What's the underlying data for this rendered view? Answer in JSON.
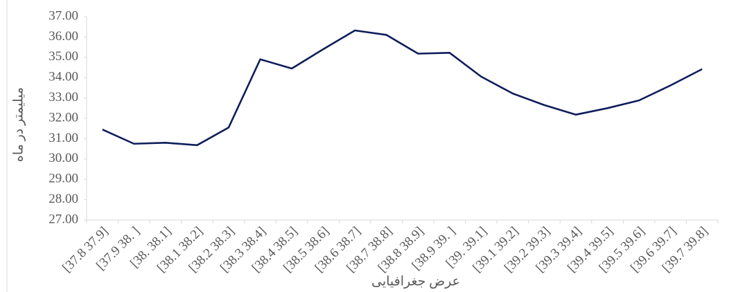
{
  "chart_data": {
    "type": "line",
    "x_label": "عرض جغرافیایی",
    "y_label": "میلیمتر در ماه",
    "categories": [
      "[37.8 37.9]",
      "[37.9 38. ]",
      "[38. 38.1]",
      "[38.1 38.2]",
      "[38.2 38.3]",
      "[38.3 38.4]",
      "[38.4 38.5]",
      "[38.5 38.6]",
      "[38.6 38.7]",
      "[38.7 38.8]",
      "[38.8 38.9]",
      "[38.9 39. ]",
      "[39. 39.1]",
      "[39.1 39.2]",
      "[39.2 39.3]",
      "[39.3 39.4]",
      "[39.4 39.5]",
      "[39.5 39.6]",
      "[39.6 39.7]",
      "[39.7 39.8]"
    ],
    "values": [
      31.45,
      30.75,
      30.8,
      30.68,
      31.55,
      34.9,
      34.45,
      35.4,
      36.32,
      36.1,
      35.18,
      35.22,
      34.05,
      33.22,
      32.65,
      32.18,
      32.5,
      32.88,
      33.62,
      34.42
    ],
    "color": "#0e1d5a",
    "ylim": [
      27,
      37
    ],
    "yticks": [
      {
        "value": 27,
        "label": "27.00"
      },
      {
        "value": 28,
        "label": "28.00"
      },
      {
        "value": 29,
        "label": "29.00"
      },
      {
        "value": 30,
        "label": "30.00"
      },
      {
        "value": 31,
        "label": "31.00"
      },
      {
        "value": 32,
        "label": "32.00"
      },
      {
        "value": 33,
        "label": "33.00"
      },
      {
        "value": 34,
        "label": "34.00"
      },
      {
        "value": 35,
        "label": "35.00"
      },
      {
        "value": 36,
        "label": "36.00"
      },
      {
        "value": 37,
        "label": "37.00"
      }
    ],
    "grid": false
  }
}
